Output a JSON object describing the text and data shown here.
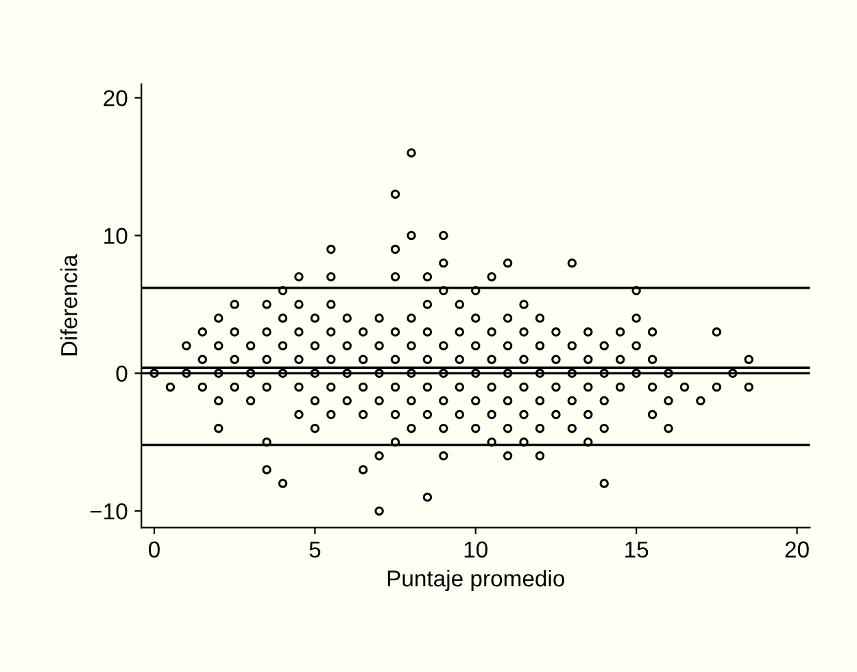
{
  "chart_data": {
    "type": "scatter",
    "xlabel": "Puntaje promedio",
    "ylabel": "Diferencia",
    "xlim": [
      -0.4,
      20.4
    ],
    "ylim": [
      -11.2,
      21
    ],
    "xticks": [
      0,
      5,
      10,
      15,
      20
    ],
    "yticks": [
      {
        "value": -10,
        "label": "−10"
      },
      0,
      10,
      20
    ],
    "grid": false,
    "legend": false,
    "marker": "circle",
    "series": [
      {
        "color": "#000000",
        "x": [
          0,
          0.5,
          1,
          1,
          1.5,
          1.5,
          1.5,
          2,
          2,
          2,
          2,
          2,
          2.5,
          2.5,
          2.5,
          2.5,
          3,
          3,
          3,
          3.5,
          3.5,
          3.5,
          3.5,
          3.5,
          3.5,
          4,
          4,
          4,
          4,
          4,
          4.5,
          4.5,
          4.5,
          4.5,
          4.5,
          4.5,
          5,
          5,
          5,
          5,
          5,
          5.5,
          5.5,
          5.5,
          5.5,
          5.5,
          5.5,
          5.5,
          6,
          6,
          6,
          6,
          6.5,
          6.5,
          6.5,
          6.5,
          6.5,
          7,
          7,
          7,
          7,
          7,
          7,
          7.5,
          7.5,
          7.5,
          7.5,
          7.5,
          7.5,
          7.5,
          7.5,
          8,
          8,
          8,
          8,
          8,
          8,
          8,
          8.5,
          8.5,
          8.5,
          8.5,
          8.5,
          8.5,
          8.5,
          9,
          9,
          9,
          9,
          9,
          9,
          9,
          9,
          9.5,
          9.5,
          9.5,
          9.5,
          9.5,
          10,
          10,
          10,
          10,
          10,
          10,
          10.5,
          10.5,
          10.5,
          10.5,
          10.5,
          10.5,
          11,
          11,
          11,
          11,
          11,
          11,
          11,
          11.5,
          11.5,
          11.5,
          11.5,
          11.5,
          11.5,
          12,
          12,
          12,
          12,
          12,
          12,
          12.5,
          12.5,
          12.5,
          12.5,
          13,
          13,
          13,
          13,
          13,
          13.5,
          13.5,
          13.5,
          13.5,
          13.5,
          14,
          14,
          14,
          14,
          14,
          14.5,
          14.5,
          14.5,
          15,
          15,
          15,
          15,
          15.5,
          15.5,
          15.5,
          15.5,
          16,
          16,
          16,
          16.5,
          17,
          17.5,
          17.5,
          18,
          18.5,
          18.5
        ],
        "values": [
          0,
          -1,
          2,
          0,
          3,
          1,
          -1,
          4,
          2,
          0,
          -2,
          -4,
          5,
          3,
          1,
          -1,
          2,
          0,
          -2,
          5,
          3,
          1,
          -1,
          -5,
          -7,
          6,
          4,
          2,
          0,
          -8,
          7,
          5,
          3,
          1,
          -1,
          -3,
          4,
          2,
          0,
          -2,
          -4,
          9,
          7,
          5,
          3,
          1,
          -1,
          -3,
          4,
          2,
          0,
          -2,
          3,
          1,
          -1,
          -3,
          -7,
          4,
          2,
          0,
          -2,
          -6,
          -10,
          13,
          9,
          7,
          3,
          1,
          -1,
          -3,
          -5,
          16,
          10,
          4,
          2,
          0,
          -2,
          -4,
          7,
          5,
          3,
          1,
          -1,
          -3,
          -9,
          10,
          8,
          6,
          2,
          0,
          -2,
          -4,
          -6,
          5,
          3,
          1,
          -1,
          -3,
          6,
          4,
          2,
          0,
          -2,
          -4,
          7,
          3,
          1,
          -1,
          -3,
          -5,
          8,
          4,
          2,
          0,
          -2,
          -4,
          -6,
          5,
          3,
          1,
          -1,
          -3,
          -5,
          4,
          2,
          0,
          -2,
          -4,
          -6,
          3,
          1,
          -1,
          -3,
          8,
          2,
          0,
          -2,
          -4,
          3,
          1,
          -1,
          -3,
          -5,
          2,
          0,
          -2,
          -4,
          -8,
          3,
          1,
          -1,
          6,
          4,
          2,
          0,
          3,
          1,
          -1,
          -3,
          0,
          -2,
          -4,
          -1,
          -2,
          3,
          -1,
          0,
          1,
          -1
        ]
      }
    ],
    "ref_lines": [
      {
        "axis": "y",
        "value": 0,
        "color": "#000000"
      },
      {
        "axis": "y",
        "value": 0.4,
        "color": "#000000"
      },
      {
        "axis": "y",
        "value": 6.2,
        "color": "#000000"
      },
      {
        "axis": "y",
        "value": -5.2,
        "color": "#000000"
      }
    ]
  }
}
